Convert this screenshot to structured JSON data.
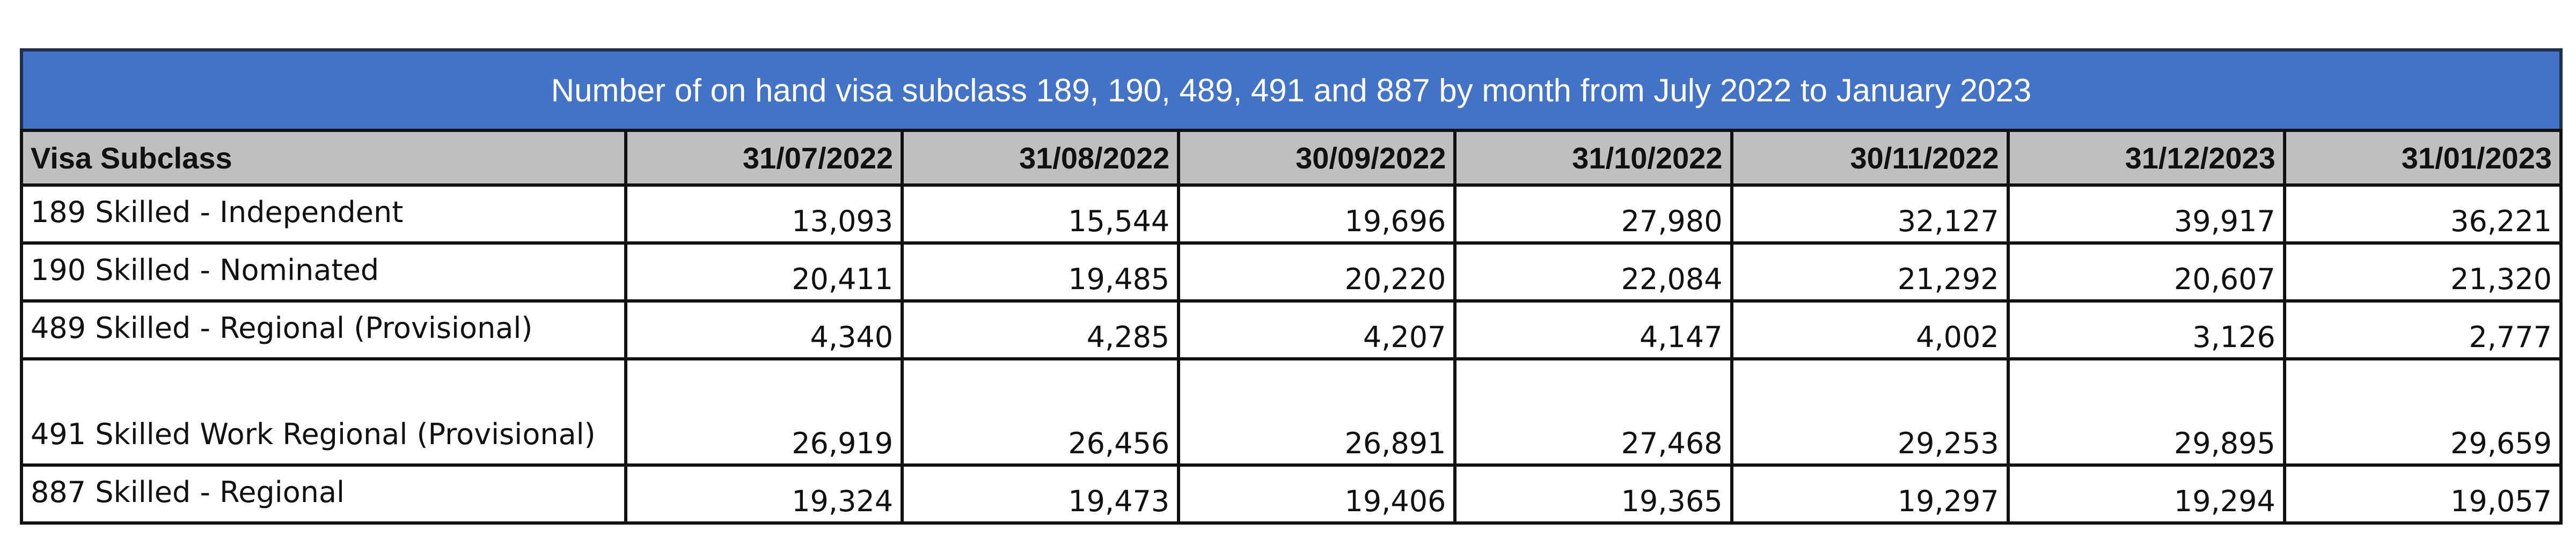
{
  "header": {
    "title": "Number of on hand visa subclass 189, 190, 489, 491 and 887 by month from July 2022 to January 2023"
  },
  "table": {
    "columns": [
      "Visa Subclass",
      "31/07/2022",
      "31/08/2022",
      "30/09/2022",
      "31/10/2022",
      "30/11/2022",
      "31/12/2023",
      "31/01/2023"
    ],
    "rows": [
      [
        "189 Skilled - Independent",
        "13,093",
        "15,544",
        "19,696",
        "27,980",
        "32,127",
        "39,917",
        "36,221"
      ],
      [
        "190 Skilled - Nominated",
        "20,411",
        "19,485",
        "20,220",
        "22,084",
        "21,292",
        "20,607",
        "21,320"
      ],
      [
        "489 Skilled - Regional (Provisional)",
        "4,340",
        "4,285",
        "4,207",
        "4,147",
        "4,002",
        "3,126",
        "2,777"
      ],
      [
        "491 Skilled Work Regional (Provisional)",
        "26,919",
        "26,456",
        "26,891",
        "27,468",
        "29,253",
        "29,895",
        "29,659"
      ],
      [
        "887 Skilled - Regional",
        "19,324",
        "19,473",
        "19,406",
        "19,365",
        "19,297",
        "19,294",
        "19,057"
      ]
    ]
  }
}
